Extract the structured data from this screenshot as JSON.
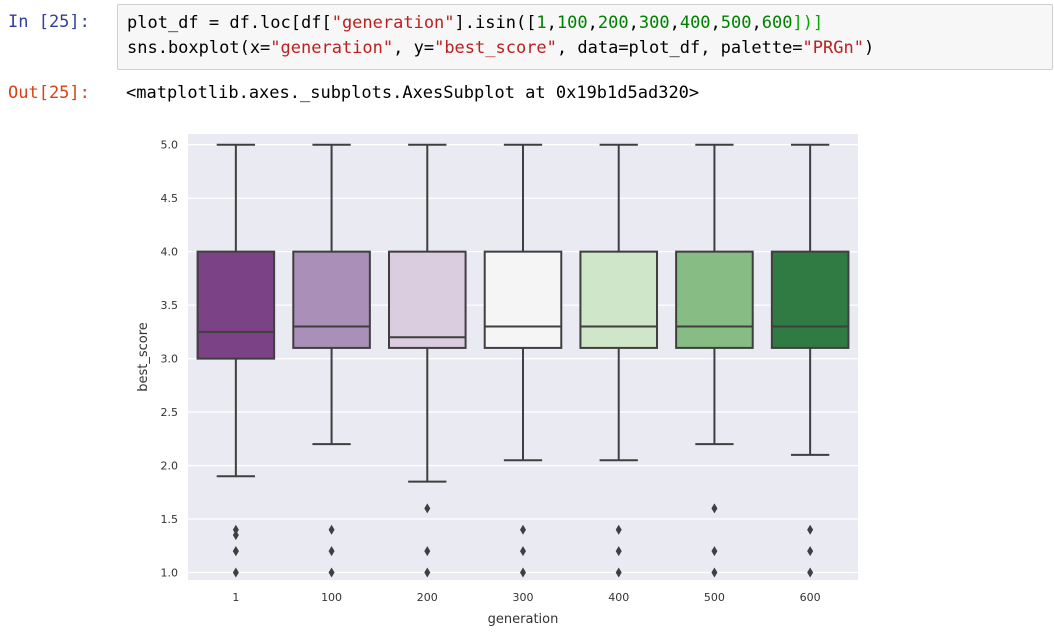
{
  "cell": {
    "in_prompt": "In [25]:",
    "out_prompt": "Out[25]:",
    "code_line1": [
      {
        "t": "plot_df = df.loc[df[",
        "c": ""
      },
      {
        "t": "\"generation\"",
        "c": "str"
      },
      {
        "t": "].isin([",
        "c": ""
      },
      {
        "t": "1",
        "c": "num"
      },
      {
        "t": ",",
        "c": ""
      },
      {
        "t": "100",
        "c": "num"
      },
      {
        "t": ",",
        "c": ""
      },
      {
        "t": "200",
        "c": "num"
      },
      {
        "t": ",",
        "c": ""
      },
      {
        "t": "300",
        "c": "num"
      },
      {
        "t": ",",
        "c": ""
      },
      {
        "t": "400",
        "c": "num"
      },
      {
        "t": ",",
        "c": ""
      },
      {
        "t": "500",
        "c": "num"
      },
      {
        "t": ",",
        "c": ""
      },
      {
        "t": "600",
        "c": "num"
      },
      {
        "t": "])]",
        "c": "brk"
      }
    ],
    "code_line2": [
      {
        "t": "sns.boxplot(x=",
        "c": ""
      },
      {
        "t": "\"generation\"",
        "c": "str"
      },
      {
        "t": ", y=",
        "c": ""
      },
      {
        "t": "\"best_score\"",
        "c": "str"
      },
      {
        "t": ", data=plot_df, palette=",
        "c": ""
      },
      {
        "t": "\"PRGn\"",
        "c": "str"
      },
      {
        "t": ")",
        "c": ""
      }
    ],
    "output_text": "<matplotlib.axes._subplots.AxesSubplot at 0x19b1d5ad320>"
  },
  "colors": {
    "axes_bg": "#eaeaf2",
    "grid": "#ffffff",
    "line": "#3f3f3f"
  },
  "chart_data": {
    "type": "boxplot",
    "xlabel": "generation",
    "ylabel": "best_score",
    "ylim": [
      0.93,
      5.1
    ],
    "yticks": [
      1.0,
      1.5,
      2.0,
      2.5,
      3.0,
      3.5,
      4.0,
      4.5,
      5.0
    ],
    "ytick_labels": [
      "1.0",
      "1.5",
      "2.0",
      "2.5",
      "3.0",
      "3.5",
      "4.0",
      "4.5",
      "5.0"
    ],
    "grid": true,
    "categories": [
      "1",
      "100",
      "200",
      "300",
      "400",
      "500",
      "600"
    ],
    "boxes": [
      {
        "q1": 3.0,
        "median": 3.25,
        "q3": 4.0,
        "whisker_low": 1.9,
        "whisker_high": 5.0,
        "fliers": [
          1.0,
          1.2,
          1.2,
          1.35,
          1.4
        ],
        "color": "#7b4285"
      },
      {
        "q1": 3.1,
        "median": 3.3,
        "q3": 4.0,
        "whisker_low": 2.2,
        "whisker_high": 5.0,
        "fliers": [
          1.0,
          1.2,
          1.4
        ],
        "color": "#aa8fb8"
      },
      {
        "q1": 3.1,
        "median": 3.2,
        "q3": 4.0,
        "whisker_low": 1.85,
        "whisker_high": 5.0,
        "fliers": [
          1.0,
          1.2,
          1.6
        ],
        "color": "#dacddf"
      },
      {
        "q1": 3.1,
        "median": 3.3,
        "q3": 4.0,
        "whisker_low": 2.05,
        "whisker_high": 5.0,
        "fliers": [
          1.0,
          1.2,
          1.4
        ],
        "color": "#f5f5f5"
      },
      {
        "q1": 3.1,
        "median": 3.3,
        "q3": 4.0,
        "whisker_low": 2.05,
        "whisker_high": 5.0,
        "fliers": [
          1.0,
          1.2,
          1.4
        ],
        "color": "#cfe6c8"
      },
      {
        "q1": 3.1,
        "median": 3.3,
        "q3": 4.0,
        "whisker_low": 2.2,
        "whisker_high": 5.0,
        "fliers": [
          1.0,
          1.2,
          1.6
        ],
        "color": "#87bc85"
      },
      {
        "q1": 3.1,
        "median": 3.3,
        "q3": 4.0,
        "whisker_low": 2.1,
        "whisker_high": 5.0,
        "fliers": [
          1.0,
          1.2,
          1.4
        ],
        "color": "#307a43"
      }
    ]
  }
}
